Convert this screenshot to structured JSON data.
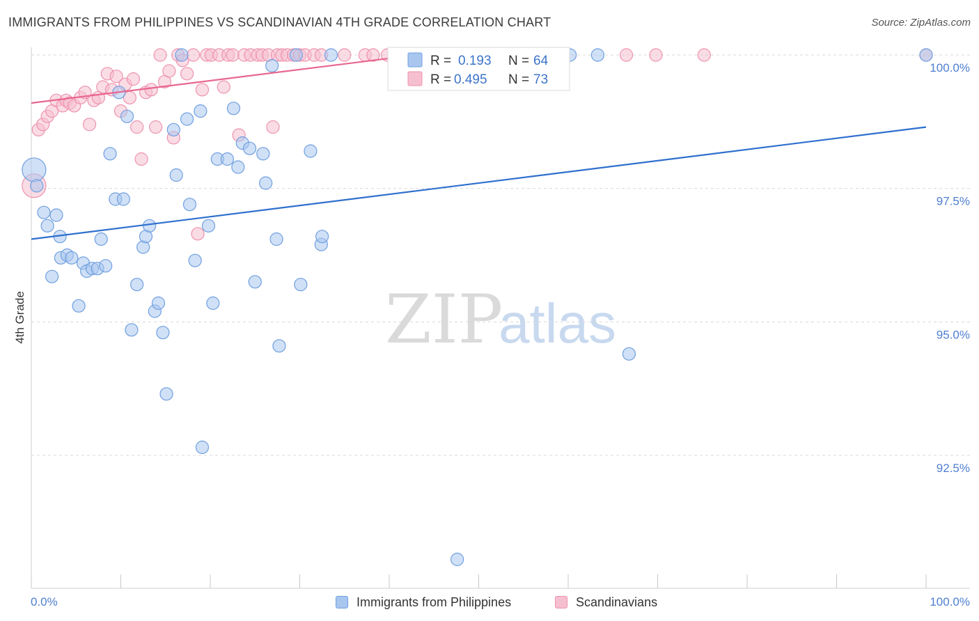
{
  "title": "IMMIGRANTS FROM PHILIPPINES VS SCANDINAVIAN 4TH GRADE CORRELATION CHART",
  "source": "Source: ZipAtlas.com",
  "watermark": {
    "zip": "ZIP",
    "atlas": "atlas"
  },
  "colors": {
    "blue_fill": "#a9c6ef",
    "blue_stroke": "#6f9fe0",
    "blue_line": "#2e6fce",
    "pink_fill": "#f6bfd0",
    "pink_stroke": "#ee92ae",
    "pink_line": "#e8668f",
    "grid": "#d8d8d8",
    "axis_text": "#4f7fd1"
  },
  "legend_top": [
    {
      "r_label": "R =",
      "r_value": "0.193",
      "n_label": "N =",
      "n_value": "64"
    },
    {
      "r_label": "R =",
      "r_value": "0.495",
      "n_label": "N =",
      "n_value": "73"
    }
  ],
  "legend_bottom": [
    {
      "label": "Immigrants from Philippines"
    },
    {
      "label": "Scandinavians"
    }
  ],
  "chart_data": {
    "type": "scatter",
    "title": "IMMIGRANTS FROM PHILIPPINES VS SCANDINAVIAN 4TH GRADE CORRELATION CHART",
    "xlabel": "",
    "ylabel": "4th Grade",
    "xlim": [
      0,
      100
    ],
    "ylim": [
      90.0,
      100.35
    ],
    "x_tick_labels": [
      "0.0%",
      "100.0%"
    ],
    "y_ticks": [
      92.5,
      95.0,
      97.5,
      100.0
    ],
    "y_tick_labels": [
      "92.5%",
      "95.0%",
      "97.5%",
      "100.0%"
    ],
    "grid": true,
    "series": [
      {
        "name": "Immigrants from Philippines",
        "color": "blue",
        "trendline": {
          "x": [
            0,
            100
          ],
          "y": [
            96.55,
            98.65
          ]
        },
        "points": [
          {
            "x": 0.3,
            "y": 97.85,
            "big": true
          },
          {
            "x": 0.6,
            "y": 97.55
          },
          {
            "x": 1.4,
            "y": 97.05
          },
          {
            "x": 1.8,
            "y": 96.8
          },
          {
            "x": 2.3,
            "y": 95.85
          },
          {
            "x": 2.8,
            "y": 97.0
          },
          {
            "x": 3.2,
            "y": 96.6
          },
          {
            "x": 3.3,
            "y": 96.2
          },
          {
            "x": 4.0,
            "y": 96.25
          },
          {
            "x": 4.5,
            "y": 96.2
          },
          {
            "x": 5.3,
            "y": 95.3
          },
          {
            "x": 5.8,
            "y": 96.1
          },
          {
            "x": 6.2,
            "y": 95.95
          },
          {
            "x": 6.8,
            "y": 96.0
          },
          {
            "x": 7.4,
            "y": 96.0
          },
          {
            "x": 7.8,
            "y": 96.55
          },
          {
            "x": 8.3,
            "y": 96.05
          },
          {
            "x": 8.8,
            "y": 98.15
          },
          {
            "x": 9.4,
            "y": 97.3
          },
          {
            "x": 9.8,
            "y": 99.3
          },
          {
            "x": 10.3,
            "y": 97.3
          },
          {
            "x": 10.7,
            "y": 98.85
          },
          {
            "x": 11.2,
            "y": 94.85
          },
          {
            "x": 11.8,
            "y": 95.7
          },
          {
            "x": 12.5,
            "y": 96.4
          },
          {
            "x": 12.8,
            "y": 96.6
          },
          {
            "x": 13.2,
            "y": 96.8
          },
          {
            "x": 13.8,
            "y": 95.2
          },
          {
            "x": 14.2,
            "y": 95.35
          },
          {
            "x": 14.7,
            "y": 94.8
          },
          {
            "x": 15.1,
            "y": 93.65
          },
          {
            "x": 15.9,
            "y": 98.6
          },
          {
            "x": 16.2,
            "y": 97.75
          },
          {
            "x": 16.8,
            "y": 100.0
          },
          {
            "x": 17.4,
            "y": 98.8
          },
          {
            "x": 17.7,
            "y": 97.2
          },
          {
            "x": 18.3,
            "y": 96.15
          },
          {
            "x": 18.9,
            "y": 98.95
          },
          {
            "x": 19.1,
            "y": 92.65
          },
          {
            "x": 19.8,
            "y": 96.8
          },
          {
            "x": 20.3,
            "y": 95.35
          },
          {
            "x": 20.8,
            "y": 98.05
          },
          {
            "x": 21.9,
            "y": 98.05
          },
          {
            "x": 22.6,
            "y": 99.0
          },
          {
            "x": 23.1,
            "y": 97.9
          },
          {
            "x": 23.6,
            "y": 98.35
          },
          {
            "x": 24.4,
            "y": 98.25
          },
          {
            "x": 25.0,
            "y": 95.75
          },
          {
            "x": 25.9,
            "y": 98.15
          },
          {
            "x": 26.2,
            "y": 97.6
          },
          {
            "x": 26.9,
            "y": 99.8
          },
          {
            "x": 27.4,
            "y": 96.55
          },
          {
            "x": 27.7,
            "y": 94.55
          },
          {
            "x": 29.6,
            "y": 100.0
          },
          {
            "x": 30.1,
            "y": 95.7
          },
          {
            "x": 31.2,
            "y": 98.2
          },
          {
            "x": 32.4,
            "y": 96.45
          },
          {
            "x": 32.5,
            "y": 96.6
          },
          {
            "x": 47.6,
            "y": 90.55
          },
          {
            "x": 60.2,
            "y": 100.0
          },
          {
            "x": 63.3,
            "y": 100.0
          },
          {
            "x": 66.8,
            "y": 94.4
          },
          {
            "x": 100.0,
            "y": 100.0
          },
          {
            "x": 33.5,
            "y": 100.0
          }
        ]
      },
      {
        "name": "Scandinavians",
        "color": "pink",
        "trendline": {
          "x": [
            0,
            43
          ],
          "y": [
            99.1,
            100.0
          ]
        },
        "points": [
          {
            "x": 0.3,
            "y": 97.55,
            "big": true
          },
          {
            "x": 0.8,
            "y": 98.6
          },
          {
            "x": 1.3,
            "y": 98.7
          },
          {
            "x": 1.8,
            "y": 98.85
          },
          {
            "x": 2.3,
            "y": 98.95
          },
          {
            "x": 2.8,
            "y": 99.15
          },
          {
            "x": 3.5,
            "y": 99.05
          },
          {
            "x": 3.9,
            "y": 99.15
          },
          {
            "x": 4.3,
            "y": 99.1
          },
          {
            "x": 4.8,
            "y": 99.05
          },
          {
            "x": 5.5,
            "y": 99.2
          },
          {
            "x": 6.0,
            "y": 99.3
          },
          {
            "x": 6.5,
            "y": 98.7
          },
          {
            "x": 7.0,
            "y": 99.15
          },
          {
            "x": 7.5,
            "y": 99.2
          },
          {
            "x": 8.0,
            "y": 99.4
          },
          {
            "x": 8.5,
            "y": 99.65
          },
          {
            "x": 9.0,
            "y": 99.35
          },
          {
            "x": 9.5,
            "y": 99.6
          },
          {
            "x": 10.0,
            "y": 98.95
          },
          {
            "x": 10.5,
            "y": 99.45
          },
          {
            "x": 11.0,
            "y": 99.2
          },
          {
            "x": 11.4,
            "y": 99.55
          },
          {
            "x": 11.8,
            "y": 98.65
          },
          {
            "x": 12.3,
            "y": 98.05
          },
          {
            "x": 12.8,
            "y": 99.3
          },
          {
            "x": 13.4,
            "y": 99.35
          },
          {
            "x": 13.9,
            "y": 98.65
          },
          {
            "x": 14.4,
            "y": 100.0
          },
          {
            "x": 14.9,
            "y": 99.5
          },
          {
            "x": 15.4,
            "y": 99.7
          },
          {
            "x": 15.9,
            "y": 98.45
          },
          {
            "x": 16.4,
            "y": 100.0
          },
          {
            "x": 16.9,
            "y": 99.9
          },
          {
            "x": 17.4,
            "y": 99.65
          },
          {
            "x": 18.1,
            "y": 100.0
          },
          {
            "x": 18.6,
            "y": 96.65
          },
          {
            "x": 19.1,
            "y": 99.35
          },
          {
            "x": 19.6,
            "y": 100.0
          },
          {
            "x": 20.1,
            "y": 100.0
          },
          {
            "x": 21.0,
            "y": 100.0
          },
          {
            "x": 21.5,
            "y": 99.4
          },
          {
            "x": 22.0,
            "y": 100.0
          },
          {
            "x": 22.5,
            "y": 100.0
          },
          {
            "x": 23.2,
            "y": 98.5
          },
          {
            "x": 23.8,
            "y": 100.0
          },
          {
            "x": 24.5,
            "y": 100.0
          },
          {
            "x": 25.3,
            "y": 100.0
          },
          {
            "x": 25.8,
            "y": 100.0
          },
          {
            "x": 26.5,
            "y": 100.0
          },
          {
            "x": 27.0,
            "y": 98.65
          },
          {
            "x": 27.5,
            "y": 100.0
          },
          {
            "x": 28.0,
            "y": 100.0
          },
          {
            "x": 28.6,
            "y": 100.0
          },
          {
            "x": 29.3,
            "y": 100.0
          },
          {
            "x": 30.0,
            "y": 100.0
          },
          {
            "x": 30.6,
            "y": 100.0
          },
          {
            "x": 31.6,
            "y": 100.0
          },
          {
            "x": 32.4,
            "y": 100.0
          },
          {
            "x": 35.0,
            "y": 100.0
          },
          {
            "x": 37.3,
            "y": 100.0
          },
          {
            "x": 39.8,
            "y": 100.0
          },
          {
            "x": 41.9,
            "y": 100.0
          },
          {
            "x": 44.4,
            "y": 100.0
          },
          {
            "x": 47.2,
            "y": 100.0
          },
          {
            "x": 50.3,
            "y": 100.0
          },
          {
            "x": 53.7,
            "y": 100.0
          },
          {
            "x": 56.9,
            "y": 100.0
          },
          {
            "x": 66.5,
            "y": 100.0
          },
          {
            "x": 69.8,
            "y": 100.0
          },
          {
            "x": 75.2,
            "y": 100.0
          },
          {
            "x": 100.0,
            "y": 100.0
          },
          {
            "x": 38.2,
            "y": 100.0
          }
        ]
      }
    ]
  }
}
